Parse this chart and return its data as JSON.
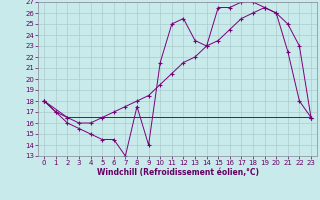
{
  "xlabel": "Windchill (Refroidissement éolien,°C)",
  "bg_color": "#c8eaea",
  "grid_color": "#aacccc",
  "line_color": "#7b007b",
  "ylim": [
    13,
    27
  ],
  "xlim": [
    -0.5,
    23.5
  ],
  "yticks": [
    13,
    14,
    15,
    16,
    17,
    18,
    19,
    20,
    21,
    22,
    23,
    24,
    25,
    26,
    27
  ],
  "xticks": [
    0,
    1,
    2,
    3,
    4,
    5,
    6,
    7,
    8,
    9,
    10,
    11,
    12,
    13,
    14,
    15,
    16,
    17,
    18,
    19,
    20,
    21,
    22,
    23
  ],
  "line1_x": [
    0,
    1,
    2,
    3,
    4,
    5,
    6,
    7,
    8,
    9,
    10,
    11,
    12,
    13,
    14,
    15,
    16,
    17,
    18,
    19,
    20,
    21,
    22,
    23
  ],
  "line1_y": [
    18.0,
    17.0,
    16.0,
    15.5,
    15.0,
    14.5,
    14.5,
    13.0,
    17.5,
    14.0,
    21.5,
    25.0,
    25.5,
    23.5,
    23.0,
    26.5,
    26.5,
    27.0,
    27.0,
    26.5,
    26.0,
    22.5,
    18.0,
    16.5
  ],
  "line2_x": [
    0,
    2,
    23
  ],
  "line2_y": [
    18.0,
    16.5,
    16.5
  ],
  "line3_x": [
    0,
    1,
    2,
    3,
    4,
    5,
    6,
    7,
    8,
    9,
    10,
    11,
    12,
    13,
    14,
    15,
    16,
    17,
    18,
    19,
    20,
    21,
    22,
    23
  ],
  "line3_y": [
    18.0,
    17.0,
    16.5,
    16.0,
    16.0,
    16.5,
    17.0,
    17.5,
    18.0,
    18.5,
    19.5,
    20.5,
    21.5,
    22.0,
    23.0,
    23.5,
    24.5,
    25.5,
    26.0,
    26.5,
    26.0,
    25.0,
    23.0,
    16.5
  ],
  "tick_color": "#660066",
  "xlabel_fontsize": 5.5,
  "tick_fontsize": 5.0
}
